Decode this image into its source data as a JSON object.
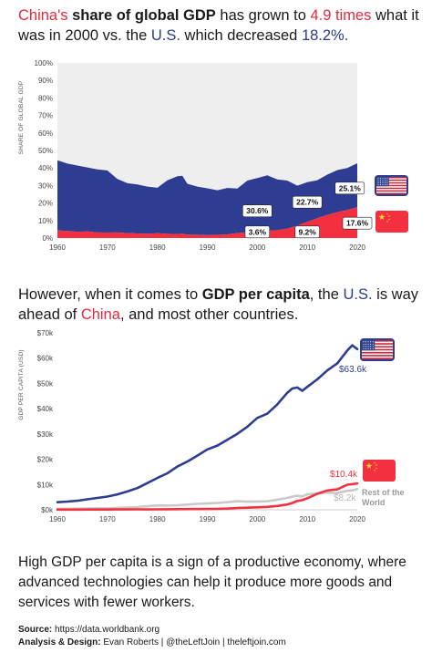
{
  "title1": {
    "part1": "China's",
    "part2": " ",
    "part3": "share of global GDP",
    "part4": " has grown to ",
    "part5": "4.9 times",
    "part6": " what it was in 2000 vs. the ",
    "part7": "U.S.",
    "part8": " which decreased ",
    "part9": "18.2%."
  },
  "title2": {
    "part1": "However, when it comes to ",
    "part2": "GDP per capita",
    "part3": ", the ",
    "part4": "U.S.",
    "part5": " is way ahead of ",
    "part6": "China",
    "part7": ", and most other countries."
  },
  "footer_text": "High GDP per capita is a sign of a productive economy, where advanced technologies can help it produce more goods and services with fewer workers.",
  "source": {
    "source_label": "Source:",
    "source_value": " https://data.worldbank.org",
    "credit_label": "Analysis & Design:",
    "credit_value": " Evan Roberts | @theLeftJoin | theleftjoin.com"
  },
  "colors": {
    "us": "#2e3c92",
    "china": "#f2303f",
    "row": "#c9c9c9",
    "bg_plot": "#eeeeee"
  },
  "chart_data": [
    {
      "type": "area",
      "ylabel": "SHARE OF GLOBAL GDP",
      "ylim": [
        0,
        100
      ],
      "yticks": [
        "0%",
        "10%",
        "20%",
        "30%",
        "40%",
        "50%",
        "60%",
        "70%",
        "80%",
        "90%",
        "100%"
      ],
      "xlim": [
        1960,
        2020
      ],
      "xticks": [
        "1960",
        "1970",
        "1980",
        "1990",
        "2000",
        "2010",
        "2020"
      ],
      "x": [
        1960,
        1962,
        1964,
        1966,
        1968,
        1970,
        1972,
        1974,
        1976,
        1978,
        1980,
        1982,
        1984,
        1985,
        1986,
        1988,
        1990,
        1992,
        1994,
        1996,
        1998,
        2000,
        2002,
        2004,
        2006,
        2008,
        2010,
        2012,
        2014,
        2016,
        2018,
        2020
      ],
      "series": [
        {
          "name": "China",
          "values": [
            4.4,
            4.0,
            3.6,
            3.8,
            3.2,
            3.1,
            3.2,
            2.8,
            2.6,
            2.4,
            2.7,
            2.4,
            2.3,
            2.5,
            2.0,
            1.9,
            1.6,
            1.8,
            2.1,
            2.8,
            3.3,
            3.6,
            4.3,
            4.5,
            5.3,
            7.2,
            9.2,
            11.3,
            13.2,
            14.8,
            16.0,
            17.6
          ]
        },
        {
          "name": "U.S.",
          "values": [
            40.0,
            38.5,
            37.8,
            36.5,
            36.0,
            35.5,
            30.5,
            28.5,
            28.0,
            27.0,
            26.0,
            30.5,
            33.0,
            33.0,
            29.0,
            27.5,
            26.8,
            25.5,
            26.5,
            25.5,
            29.5,
            30.6,
            31.5,
            29.0,
            27.5,
            22.7,
            22.7,
            21.7,
            23.0,
            24.0,
            24.0,
            25.1
          ]
        }
      ],
      "annotations": {
        "us_2000": "30.6%",
        "us_2010": "22.7%",
        "us_2020": "25.1%",
        "china_2000": "3.6%",
        "china_2010": "9.2%",
        "china_2020": "17.6%"
      },
      "icons": [
        "us-flag-icon",
        "china-flag-icon"
      ]
    },
    {
      "type": "line",
      "ylabel": "GDP PER CAPITA (USD)",
      "ylim": [
        0,
        70000
      ],
      "yticks": [
        "$0k",
        "$10k",
        "$20k",
        "$30k",
        "$40k",
        "$50k",
        "$60k",
        "$70k"
      ],
      "xlim": [
        1960,
        2020
      ],
      "xticks": [
        "1960",
        "1970",
        "1980",
        "1990",
        "2000",
        "2010",
        "2020"
      ],
      "x": [
        1960,
        1962,
        1964,
        1966,
        1968,
        1970,
        1972,
        1974,
        1976,
        1978,
        1980,
        1982,
        1984,
        1986,
        1988,
        1990,
        1992,
        1994,
        1996,
        1998,
        2000,
        2002,
        2004,
        2006,
        2007,
        2008,
        2009,
        2010,
        2012,
        2014,
        2016,
        2018,
        2019,
        2020
      ],
      "series": [
        {
          "name": "U.S.",
          "values": [
            3007,
            3244,
            3573,
            4147,
            4696,
            5234,
            6094,
            7242,
            8592,
            10565,
            12575,
            14434,
            17121,
            19071,
            21417,
            23889,
            25418,
            27695,
            30068,
            32854,
            36330,
            38024,
            41725,
            46300,
            47976,
            48383,
            47100,
            48650,
            51603,
            55124,
            57951,
            62997,
            65095,
            63593
          ]
        },
        {
          "name": "Rest of the World",
          "values": [
            380,
            410,
            460,
            520,
            560,
            610,
            720,
            940,
            1050,
            1400,
            1750,
            1700,
            1780,
            2050,
            2350,
            2500,
            2700,
            3000,
            3400,
            3200,
            3300,
            3350,
            4000,
            4700,
            5200,
            5600,
            5300,
            6100,
            6500,
            6800,
            6600,
            7500,
            7700,
            8200
          ]
        },
        {
          "name": "China",
          "values": [
            90,
            70,
            85,
            102,
            91,
            113,
            132,
            157,
            165,
            156,
            195,
            203,
            251,
            282,
            284,
            318,
            366,
            473,
            709,
            829,
            959,
            1149,
            1509,
            2099,
            2694,
            3468,
            3832,
            4550,
            6300,
            7636,
            8094,
            9905,
            10144,
            10435
          ]
        }
      ],
      "labels": {
        "us": "$63.6k",
        "china": "$10.4k",
        "row_value": "$8.2k",
        "row_name_line1": "Rest of the",
        "row_name_line2": "World"
      },
      "icons": [
        "us-flag-icon",
        "china-flag-icon"
      ]
    }
  ]
}
